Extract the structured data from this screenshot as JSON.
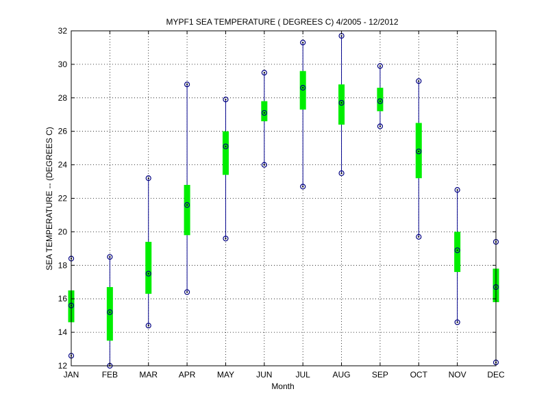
{
  "chart_data": {
    "type": "box",
    "title": "MYPF1  SEA TEMPERATURE ( DEGREES C) 4/2005 - 12/2012",
    "xlabel": "Month",
    "ylabel": "SEA TEMPERATURE -- (DEGREES C)",
    "ylim": [
      12,
      32
    ],
    "yticks": [
      12,
      14,
      16,
      18,
      20,
      22,
      24,
      26,
      28,
      30,
      32
    ],
    "grid": true,
    "categories": [
      "JAN",
      "FEB",
      "MAR",
      "APR",
      "MAY",
      "JUN",
      "JUL",
      "AUG",
      "SEP",
      "OCT",
      "NOV",
      "DEC"
    ],
    "series": [
      {
        "min": [
          12.6,
          12.0,
          14.4,
          16.4,
          19.6,
          24.0,
          22.7,
          23.5,
          26.3,
          19.7,
          14.6,
          12.2
        ],
        "q1": [
          14.6,
          13.5,
          16.3,
          19.8,
          23.4,
          26.6,
          27.3,
          26.4,
          27.2,
          23.2,
          17.6,
          15.8
        ],
        "median": [
          15.6,
          15.2,
          17.5,
          21.6,
          25.1,
          27.1,
          28.6,
          27.7,
          27.8,
          24.8,
          18.9,
          16.7
        ],
        "q3": [
          16.5,
          16.7,
          19.4,
          22.8,
          26.0,
          27.8,
          29.6,
          28.8,
          28.6,
          26.5,
          20.0,
          17.8
        ],
        "max": [
          18.4,
          18.5,
          23.2,
          28.8,
          27.9,
          29.5,
          31.3,
          31.7,
          29.9,
          29.0,
          22.5,
          19.4
        ]
      }
    ],
    "colors": {
      "whisker": "#00008b",
      "box": "#00ee00",
      "marker": "#000080",
      "grid": "#000000",
      "axis": "#000000"
    }
  }
}
